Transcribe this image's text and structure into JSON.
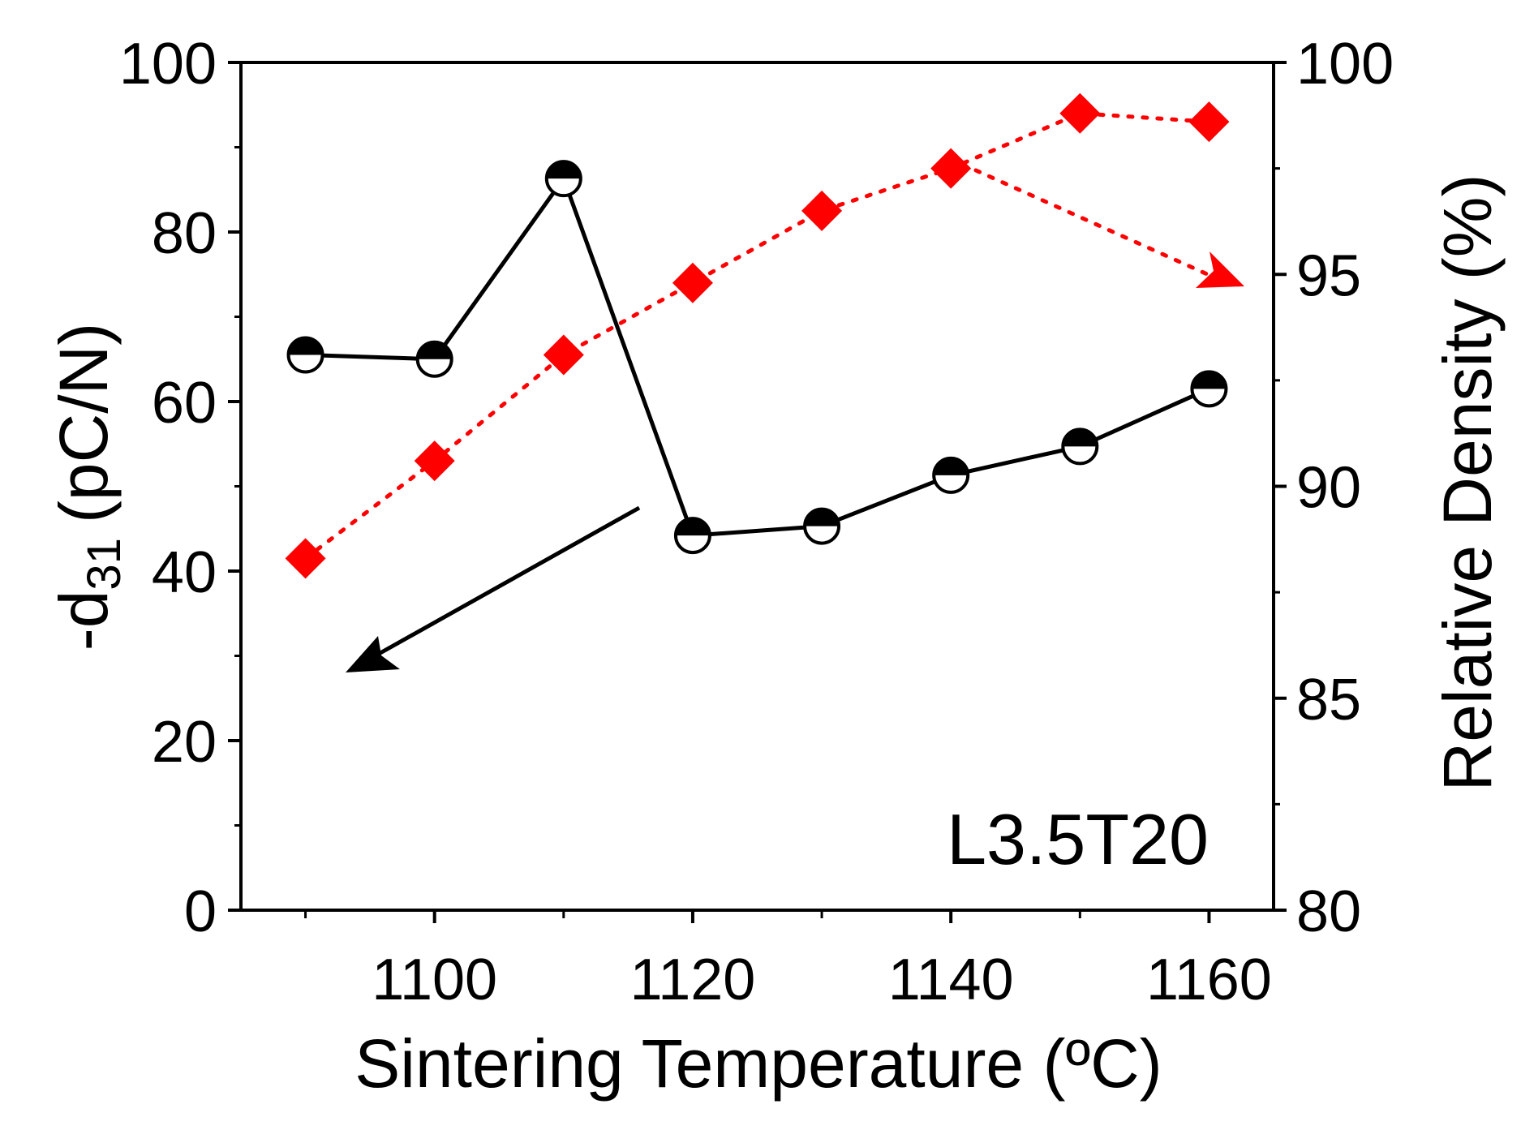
{
  "chart_data": {
    "type": "line",
    "title": "",
    "annotation": "L3.5T20",
    "x": [
      1090,
      1100,
      1110,
      1120,
      1130,
      1140,
      1150,
      1160
    ],
    "xlabel": "Sintering Temperature (ºC)",
    "xlim": [
      1085,
      1165
    ],
    "xticks": [
      1100,
      1120,
      1140,
      1160
    ],
    "xtick_labels": [
      "1100",
      "1120",
      "1140",
      "1160"
    ],
    "ylabel_left": {
      "prefix": "-d",
      "subscript": "31",
      "suffix": "(pC/N)"
    },
    "ylim_left": [
      0,
      100
    ],
    "yticks_left": [
      0,
      20,
      40,
      60,
      80,
      100
    ],
    "ytick_labels_left": [
      "0",
      "20",
      "40",
      "60",
      "80",
      "100"
    ],
    "ylabel_right": "Relative Density (%)",
    "ylim_right": [
      80,
      100
    ],
    "yticks_right": [
      80,
      85,
      90,
      95,
      100
    ],
    "ytick_labels_right": [
      "80",
      "85",
      "90",
      "95",
      "100"
    ],
    "series": [
      {
        "name": "-d31",
        "axis": "left",
        "color": "#000000",
        "marker": "half-filled-circle",
        "line": "solid",
        "values": [
          65.5,
          65.0,
          86.3,
          44.2,
          45.3,
          51.3,
          54.7,
          61.5
        ]
      },
      {
        "name": "Relative Density",
        "axis": "right",
        "color": "#ff0000",
        "marker": "diamond",
        "line": "dotted",
        "values": [
          88.3,
          90.6,
          93.1,
          94.8,
          96.5,
          97.5,
          98.8,
          98.6
        ]
      }
    ]
  }
}
